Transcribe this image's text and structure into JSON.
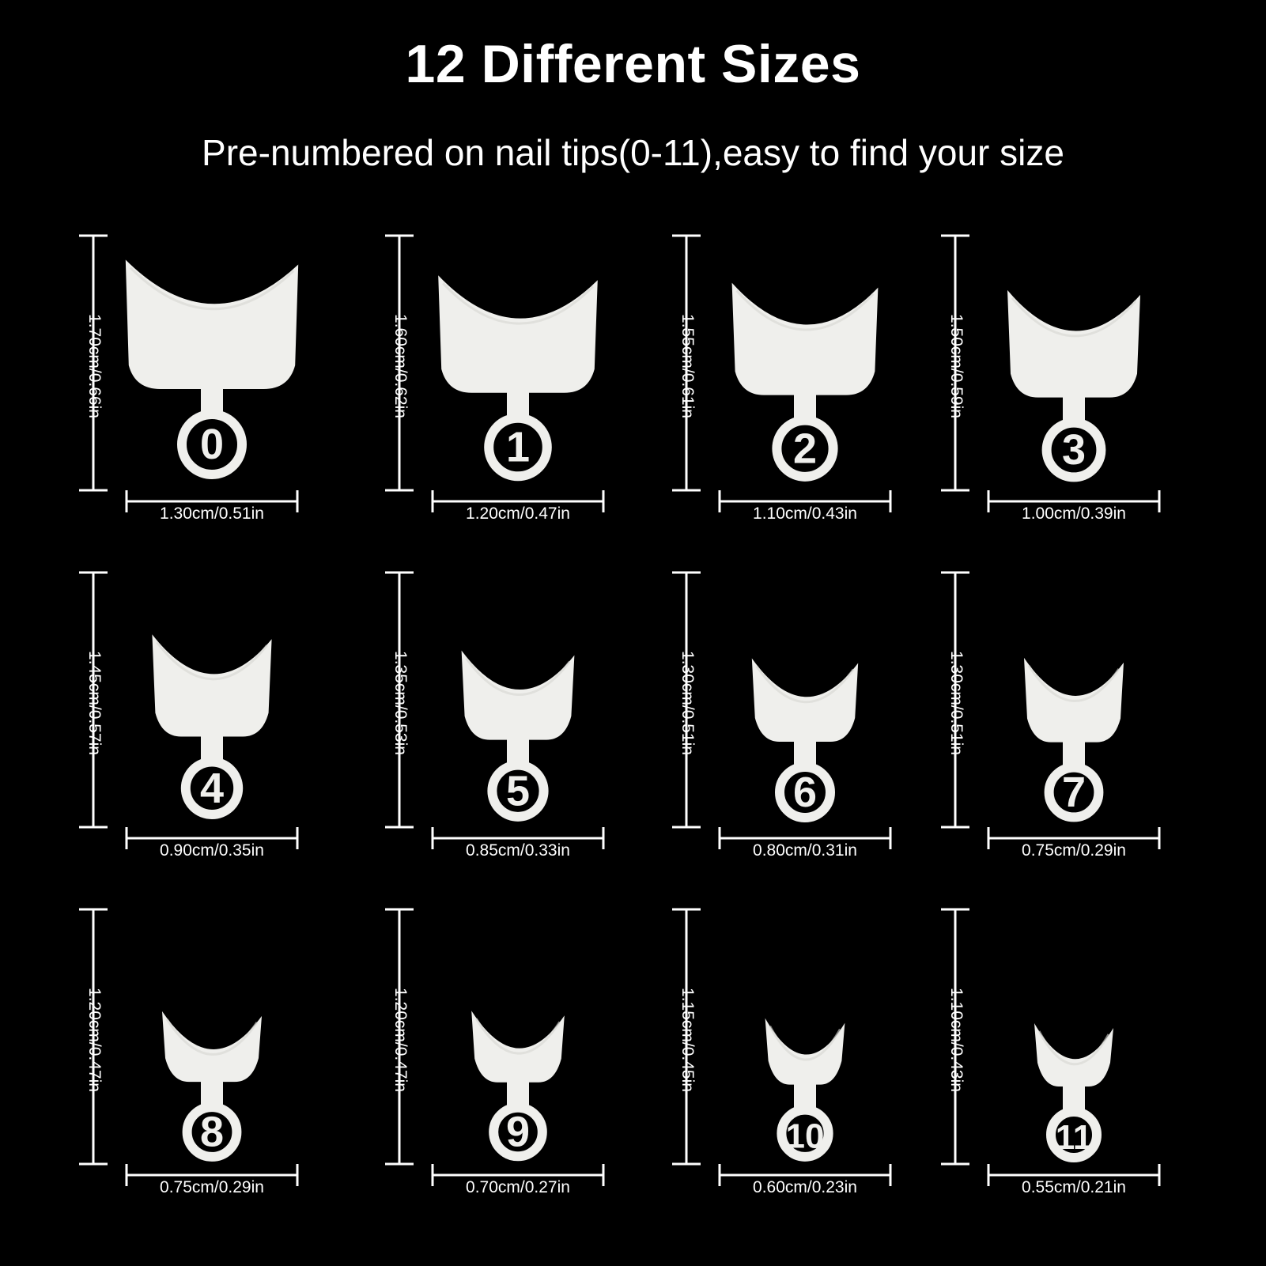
{
  "title": "12 Different Sizes",
  "subtitle": "Pre-numbered on nail tips(0-11),easy to find your size",
  "colors": {
    "background": "#000000",
    "text": "#ffffff",
    "tip_fill": "#efefec",
    "tip_shade": "#d6d6d2",
    "ruler": "#ffffff"
  },
  "tips": [
    {
      "number": "0",
      "height": "1.70cm/0.66in",
      "width": "1.30cm/0.51in",
      "height_cm": 1.7,
      "width_cm": 1.3
    },
    {
      "number": "1",
      "height": "1.60cm/0.62in",
      "width": "1.20cm/0.47in",
      "height_cm": 1.6,
      "width_cm": 1.2
    },
    {
      "number": "2",
      "height": "1.55cm/0.61in",
      "width": "1.10cm/0.43in",
      "height_cm": 1.55,
      "width_cm": 1.1
    },
    {
      "number": "3",
      "height": "1.50cm/0.59in",
      "width": "1.00cm/0.39in",
      "height_cm": 1.5,
      "width_cm": 1.0
    },
    {
      "number": "4",
      "height": "1.45cm/0.57in",
      "width": "0.90cm/0.35in",
      "height_cm": 1.45,
      "width_cm": 0.9
    },
    {
      "number": "5",
      "height": "1.35cm/0.53in",
      "width": "0.85cm/0.33in",
      "height_cm": 1.35,
      "width_cm": 0.85
    },
    {
      "number": "6",
      "height": "1.30cm/0.51in",
      "width": "0.80cm/0.31in",
      "height_cm": 1.3,
      "width_cm": 0.8
    },
    {
      "number": "7",
      "height": "1.30cm/0.51in",
      "width": "0.75cm/0.29in",
      "height_cm": 1.3,
      "width_cm": 0.75
    },
    {
      "number": "8",
      "height": "1.20cm/0.47in",
      "width": "0.75cm/0.29in",
      "height_cm": 1.2,
      "width_cm": 0.75
    },
    {
      "number": "9",
      "height": "1.20cm/0.47in",
      "width": "0.70cm/0.27in",
      "height_cm": 1.2,
      "width_cm": 0.7
    },
    {
      "number": "10",
      "height": "1.15cm/0.45in",
      "width": "0.60cm/0.23in",
      "height_cm": 1.15,
      "width_cm": 0.6
    },
    {
      "number": "11",
      "height": "1.10cm/0.43in",
      "width": "0.55cm/0.21in",
      "height_cm": 1.1,
      "width_cm": 0.55
    }
  ]
}
